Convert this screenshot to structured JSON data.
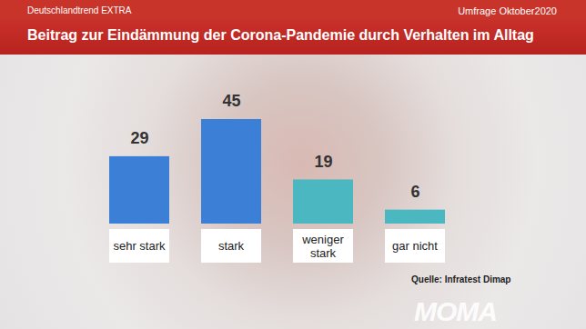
{
  "chart_data": {
    "type": "bar",
    "title": "Beitrag zur Eindämmung der Corona-Pandemie durch Verhalten im Alltag",
    "subtitle": "Umfrage Oktober2020",
    "source": "Quelle: Infratest Dimap",
    "annotations": [
      "Deutschlandtrend EXTRA",
      "MOMA"
    ],
    "categories": [
      "sehr stark",
      "stark",
      "weniger stark",
      "gar nicht"
    ],
    "values": [
      29,
      45,
      19,
      6
    ],
    "colors": [
      "#3b80d6",
      "#3b80d6",
      "#4bb7c0",
      "#4bb7c0"
    ],
    "data_labels": true,
    "tick_labels": "x"
  }
}
